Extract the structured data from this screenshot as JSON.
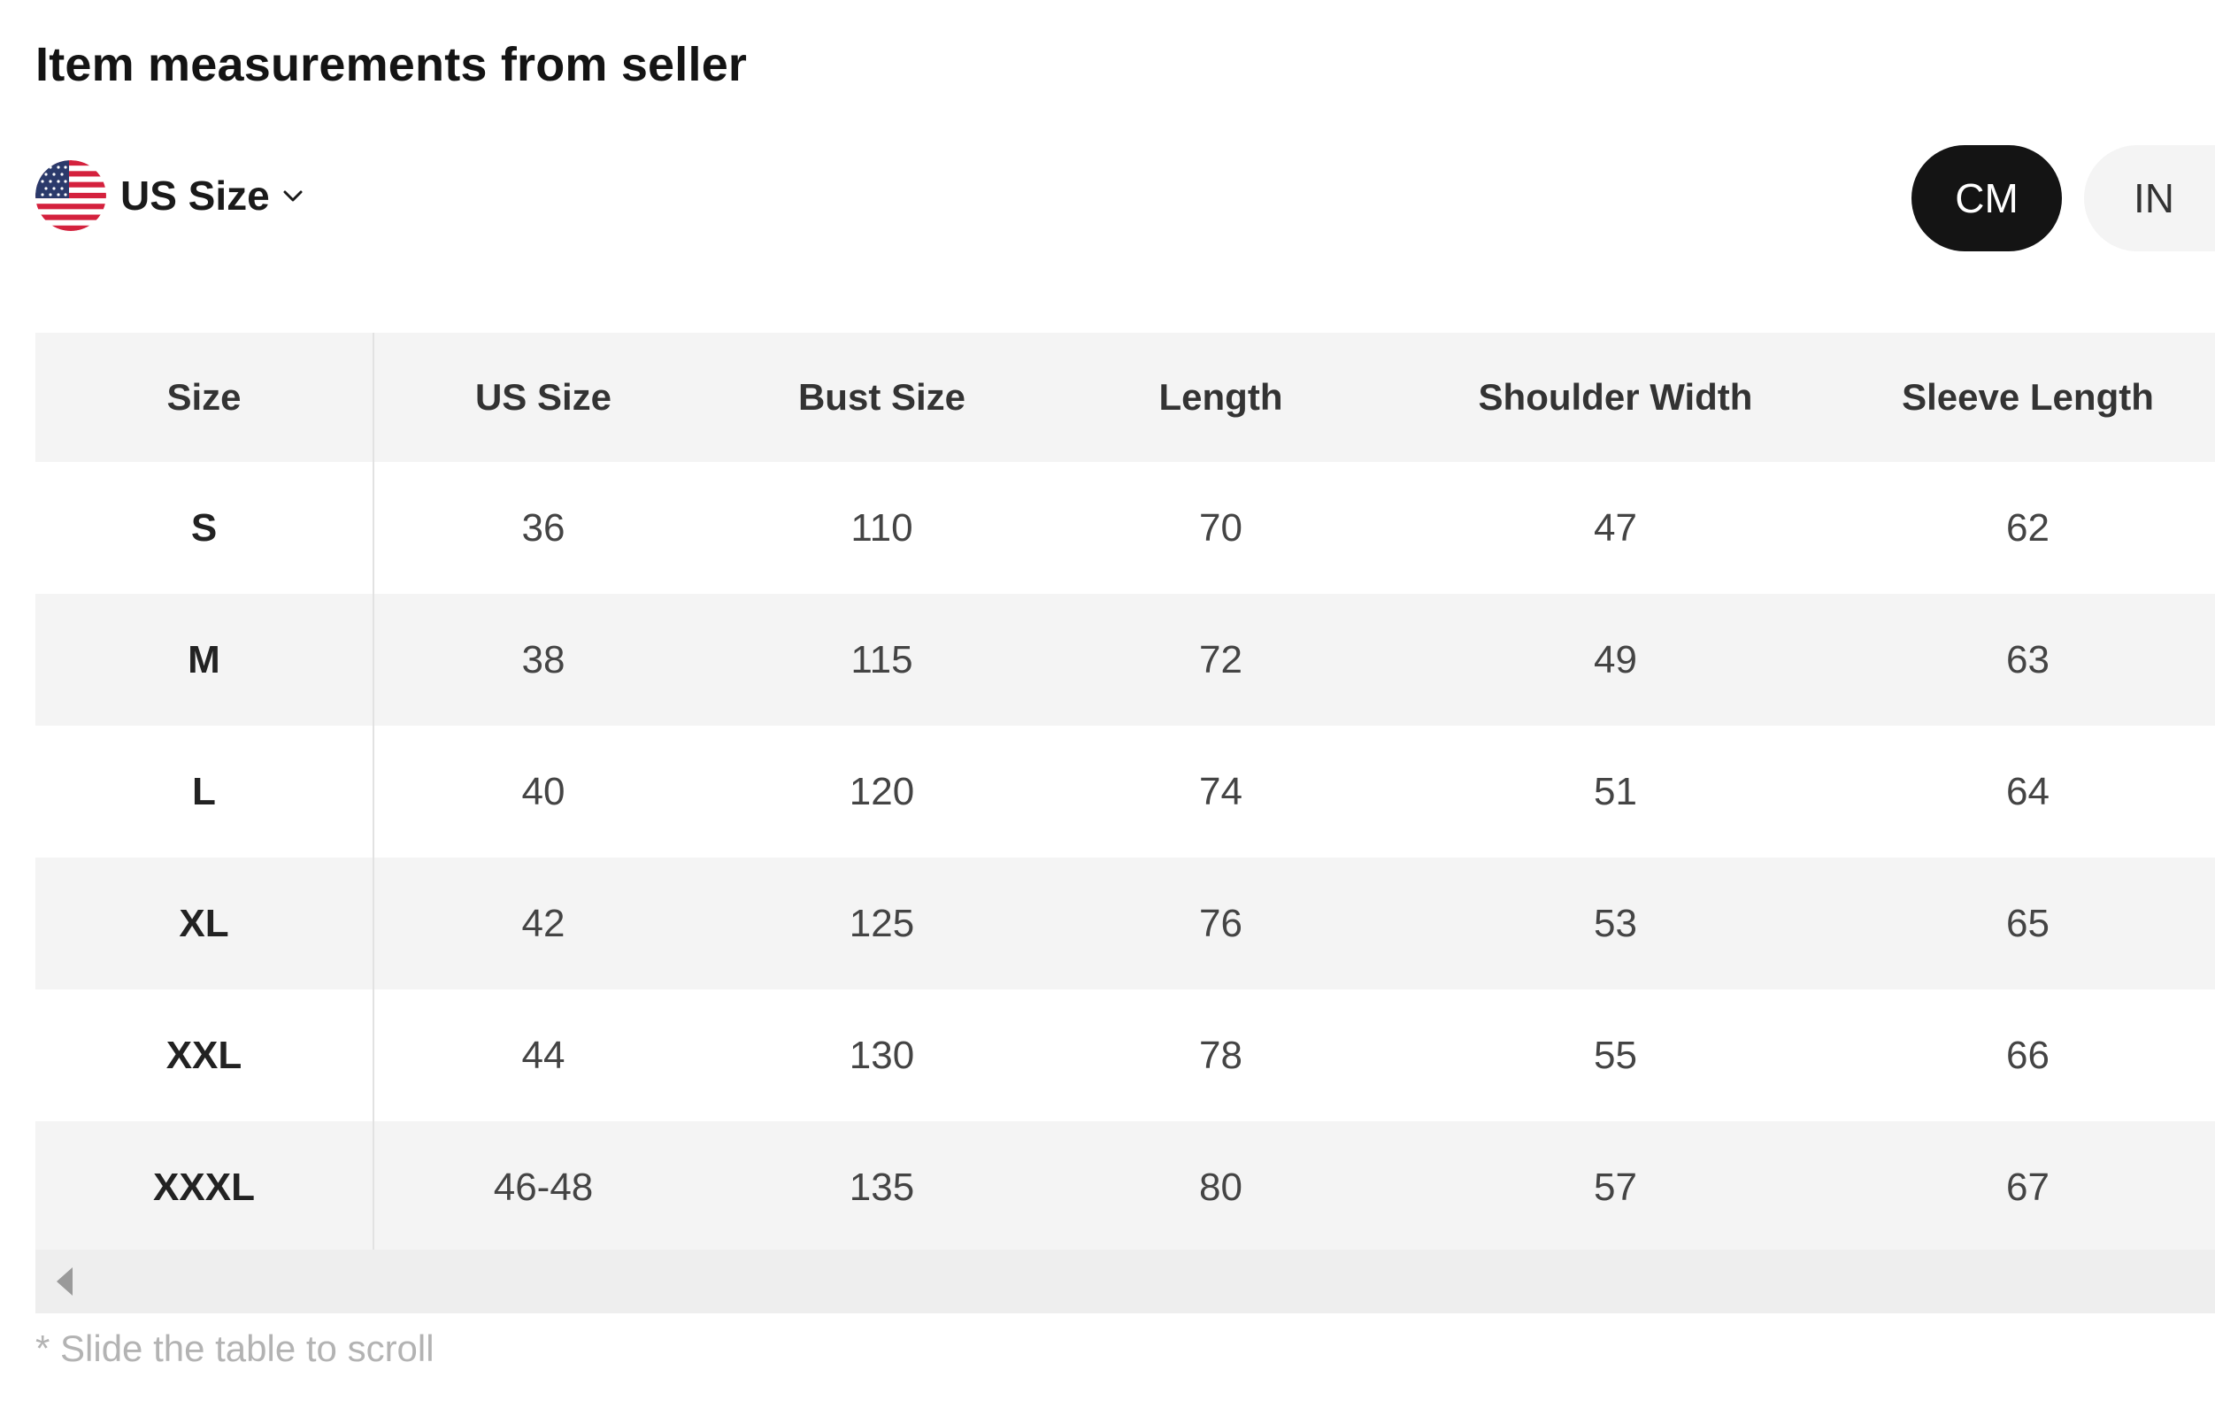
{
  "title": "Item measurements from seller",
  "size_selector": {
    "label": "US Size",
    "flag_icon": "us-flag-icon",
    "chevron_icon": "chevron-down-icon"
  },
  "units": {
    "selected": "CM",
    "cm_label": "CM",
    "in_label": "IN"
  },
  "table": {
    "headers": [
      "Size",
      "US Size",
      "Bust Size",
      "Length",
      "Shoulder Width",
      "Sleeve Length"
    ],
    "rows": [
      [
        "S",
        "36",
        "110",
        "70",
        "47",
        "62"
      ],
      [
        "M",
        "38",
        "115",
        "72",
        "49",
        "63"
      ],
      [
        "L",
        "40",
        "120",
        "74",
        "51",
        "64"
      ],
      [
        "XL",
        "42",
        "125",
        "76",
        "53",
        "65"
      ],
      [
        "XXL",
        "44",
        "130",
        "78",
        "55",
        "66"
      ],
      [
        "XXXL",
        "46-48",
        "135",
        "80",
        "57",
        "67"
      ]
    ]
  },
  "hint": "* Slide the table to scroll",
  "colors": {
    "selected_pill": "#141414",
    "unselected_pill": "#f4f4f4",
    "header_bg": "#f4f4f4",
    "hint_text": "#b3b3b3"
  }
}
